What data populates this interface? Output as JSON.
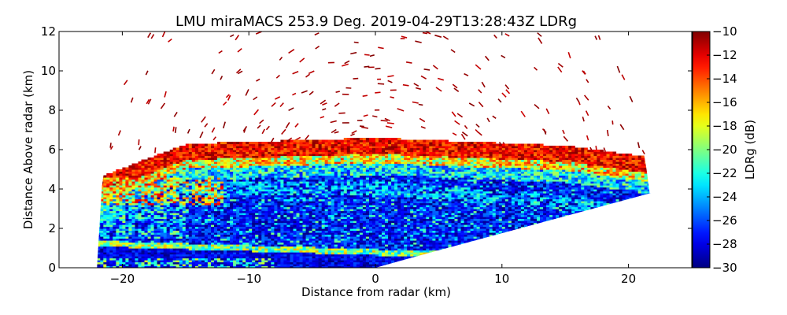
{
  "chart_data": {
    "type": "heatmap",
    "title": "LMU miraMACS 253.9 Deg. 2019-04-29T13:28:43Z  LDRg",
    "xlabel": "Distance from radar (km)",
    "ylabel": "Distance Above radar  (km)",
    "xlim": [
      -25,
      25
    ],
    "ylim": [
      0,
      12
    ],
    "xticks": [
      -20,
      -10,
      0,
      10,
      20
    ],
    "xtick_labels": [
      "−20",
      "−10",
      "0",
      "10",
      "20"
    ],
    "yticks": [
      0,
      2,
      4,
      6,
      8,
      10,
      12
    ],
    "ytick_labels": [
      "0",
      "2",
      "4",
      "6",
      "8",
      "10",
      "12"
    ],
    "colorbar": {
      "label": "LDRg (dB)",
      "range": [
        -30,
        -10
      ],
      "ticks": [
        -30,
        -28,
        -26,
        -24,
        -22,
        -20,
        -18,
        -16,
        -14,
        -12,
        -10
      ],
      "tick_labels": [
        "−30",
        "−28",
        "−26",
        "−24",
        "−22",
        "−20",
        "−18",
        "−16",
        "−14",
        "−12",
        "−10"
      ],
      "colormap": "jet",
      "colors": [
        "#00007f",
        "#0000ff",
        "#007fff",
        "#00ffff",
        "#7fff7f",
        "#ffff00",
        "#ff7f00",
        "#ff0000",
        "#7f0000"
      ]
    },
    "scan": {
      "azimuth_deg": 253.9,
      "range_km": 22,
      "left_edge_x_km": -22,
      "right_edge_x_km": 21.8,
      "right_edge_top_km": 3.8,
      "min_elevation_wedge": [
        [
          0,
          0
        ],
        [
          4.5,
          0.8
        ],
        [
          21.8,
          3.8
        ]
      ]
    },
    "layers": [
      {
        "feature": "cloud top (noisy, high LDRg)",
        "y_top_km_at_x": [
          [
            -22,
            4.2
          ],
          [
            -15,
            5.9
          ],
          [
            0,
            6.2
          ],
          [
            15,
            5.8
          ],
          [
            21.8,
            5.2
          ]
        ],
        "value_db": -11
      },
      {
        "feature": "cloud body",
        "y_bottom_km": 0.8,
        "value_db": -27
      },
      {
        "feature": "melting layer (bright band)",
        "y_km_at_x": [
          [
            -22,
            1.2
          ],
          [
            -10,
            0.95
          ],
          [
            0,
            0.75
          ],
          [
            5,
            0.7
          ]
        ],
        "value_db": -20
      },
      {
        "feature": "noise above cloud",
        "y_range_km": [
          6.2,
          12
        ],
        "value_db": -10
      }
    ]
  }
}
